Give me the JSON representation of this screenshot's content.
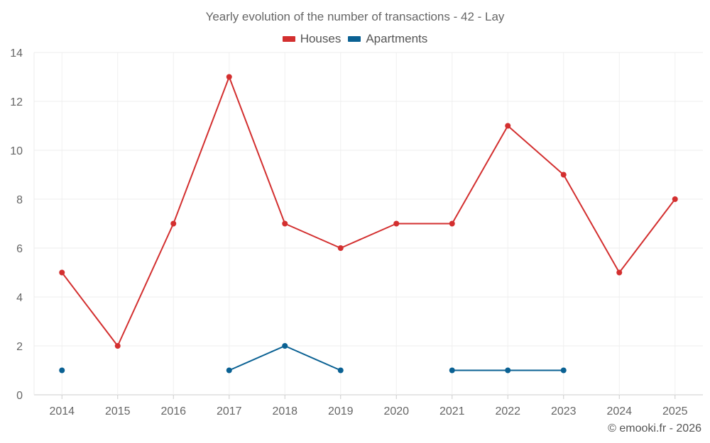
{
  "chart_data": {
    "type": "line",
    "title": "Yearly evolution of the number of transactions - 42 - Lay",
    "xlabel": "",
    "ylabel": "",
    "categories": [
      "2014",
      "2015",
      "2016",
      "2017",
      "2018",
      "2019",
      "2020",
      "2021",
      "2022",
      "2023",
      "2024",
      "2025"
    ],
    "ylim": [
      0,
      14
    ],
    "yticks": [
      0,
      2,
      4,
      6,
      8,
      10,
      12,
      14
    ],
    "grid": true,
    "legend_position": "top-center",
    "series": [
      {
        "name": "Houses",
        "color": "#d32f2f",
        "values": [
          5,
          2,
          7,
          13,
          7,
          6,
          7,
          7,
          11,
          9,
          5,
          8
        ]
      },
      {
        "name": "Apartments",
        "color": "#0a6193",
        "values": [
          1,
          null,
          null,
          1,
          2,
          1,
          null,
          1,
          1,
          1,
          null,
          null
        ]
      }
    ]
  },
  "credit": "© emooki.fr - 2026"
}
